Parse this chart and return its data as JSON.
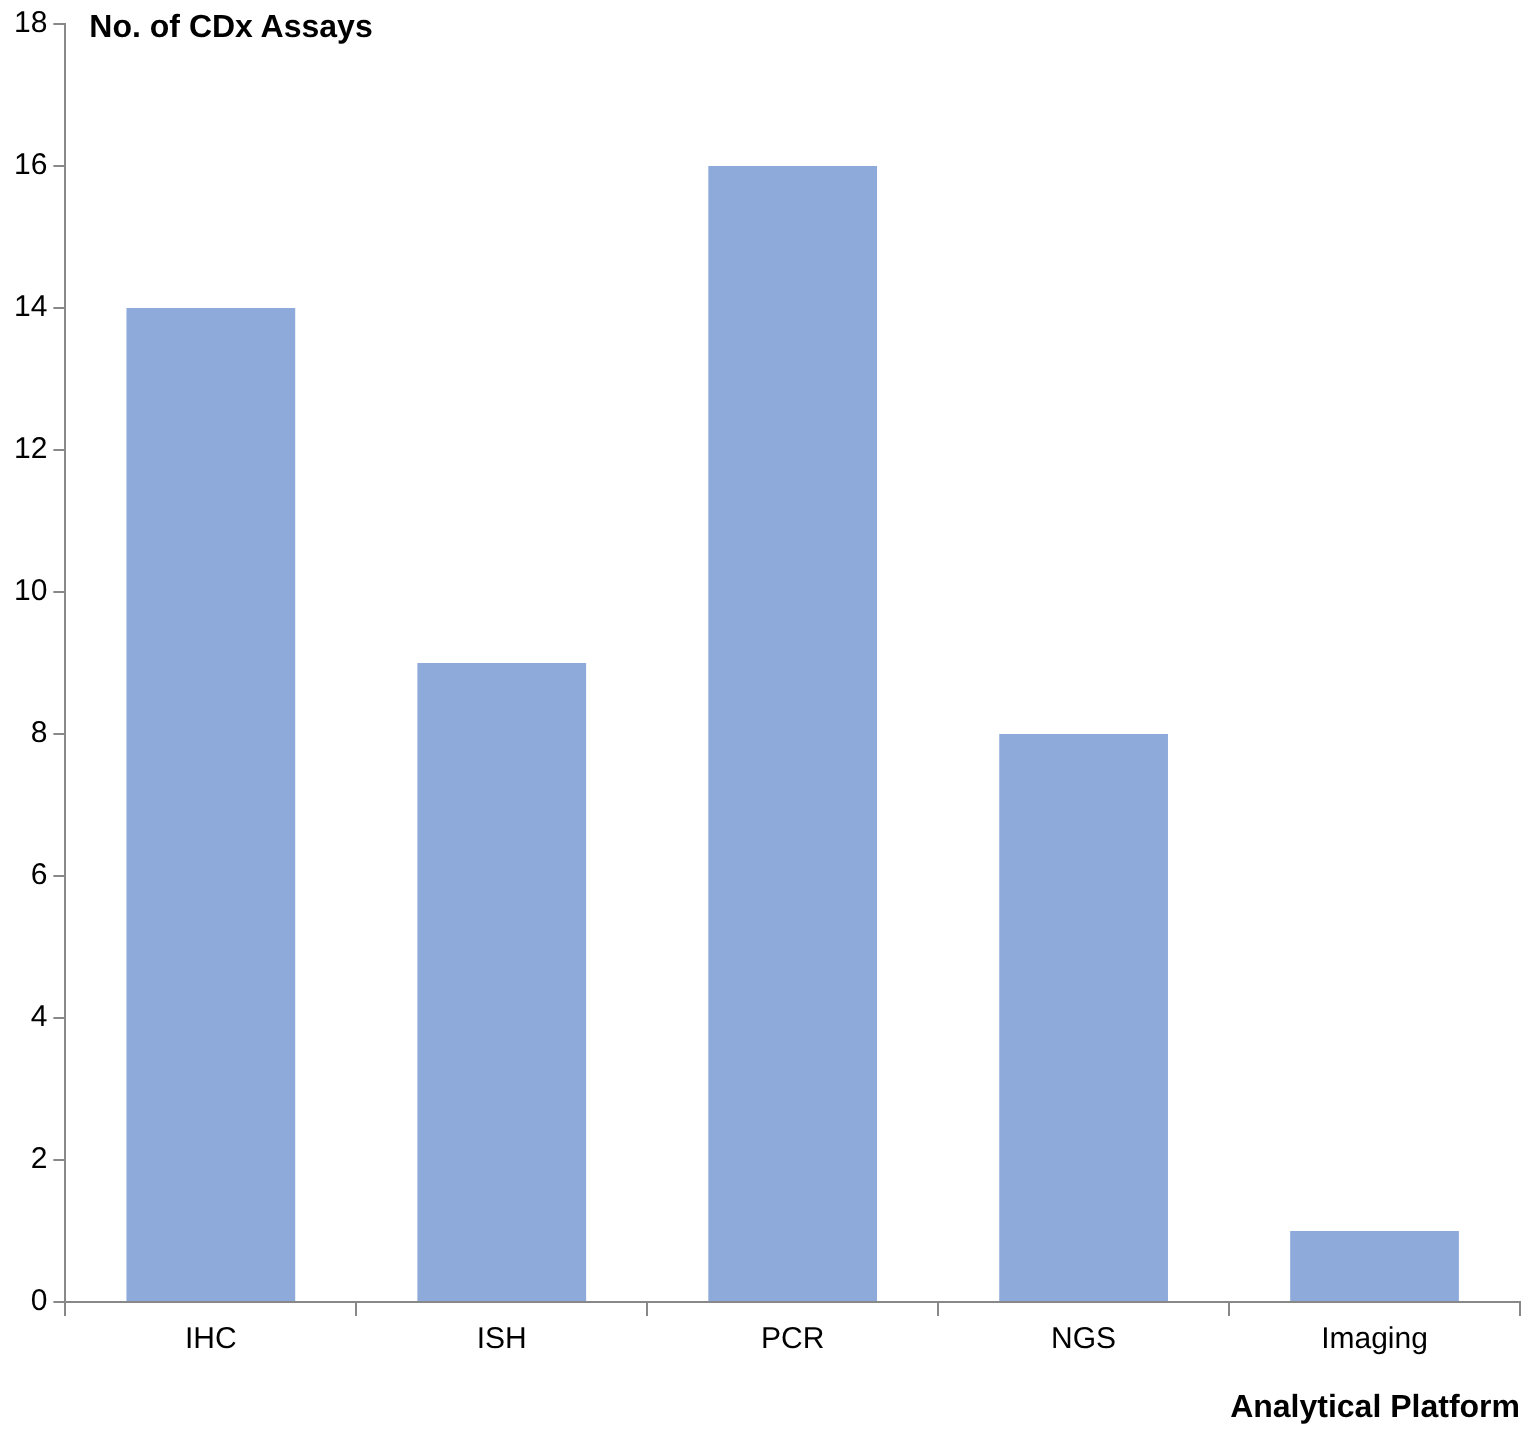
{
  "chart_data": {
    "type": "bar",
    "xlabel": "Analytical Platform",
    "ylabel": "No. of CDx Assays",
    "categories": [
      "IHC",
      "ISH",
      "PCR",
      "NGS",
      "Imaging"
    ],
    "values": [
      14,
      9,
      16,
      8,
      1
    ],
    "color": "#8eaadb",
    "ylim": [
      0,
      18
    ],
    "yticks": [
      0,
      2,
      4,
      6,
      8,
      10,
      12,
      14,
      16,
      18
    ],
    "grid": false
  }
}
